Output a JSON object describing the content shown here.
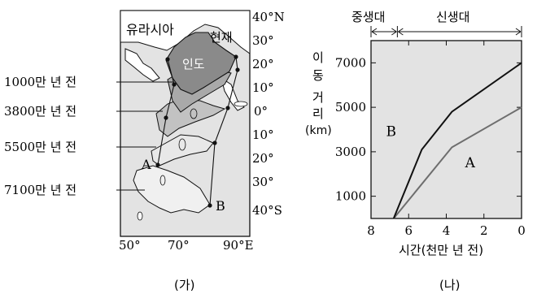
{
  "panel_ga": {
    "caption": "(가)",
    "region_label": "유라시아",
    "present_label": "현재",
    "india_label": "인도",
    "time_labels": [
      "1000만 년 전",
      "3800만 년 전",
      "5500만 년 전",
      "7100만 년 전"
    ],
    "point_labels": {
      "A": "A",
      "B": "B"
    },
    "lat_labels": [
      "40°N",
      "30°",
      "20°",
      "10°",
      "0°",
      "10°",
      "20°",
      "30°",
      "40°S"
    ],
    "lon_labels": [
      "50°",
      "70°",
      "90°E"
    ]
  },
  "panel_na": {
    "caption": "(나)",
    "era_mesozoic": "중생대",
    "era_cenozoic": "신생대",
    "ylabel_chars": [
      "이",
      "동",
      "거",
      "리",
      "(km)"
    ],
    "xlabel": "시간(천만 년 전)"
  },
  "chart_data": {
    "type": "line",
    "x_label": "시간(천만 년 전)",
    "y_label": "이동 거리(km)",
    "x_ticks": [
      8,
      6,
      4,
      2,
      0
    ],
    "y_ticks": [
      1000,
      3000,
      5000,
      7000
    ],
    "xlim": [
      8,
      0
    ],
    "ylim": [
      0,
      8000
    ],
    "series": [
      {
        "name": "A",
        "x": [
          6.8,
          3.7,
          0
        ],
        "y": [
          0,
          3200,
          5000
        ],
        "color": "#6e6e6e"
      },
      {
        "name": "B",
        "x": [
          6.8,
          5.3,
          3.7,
          0
        ],
        "y": [
          0,
          3100,
          4800,
          7000
        ],
        "color": "#111111"
      }
    ],
    "era_boundary_x": 6.6
  }
}
